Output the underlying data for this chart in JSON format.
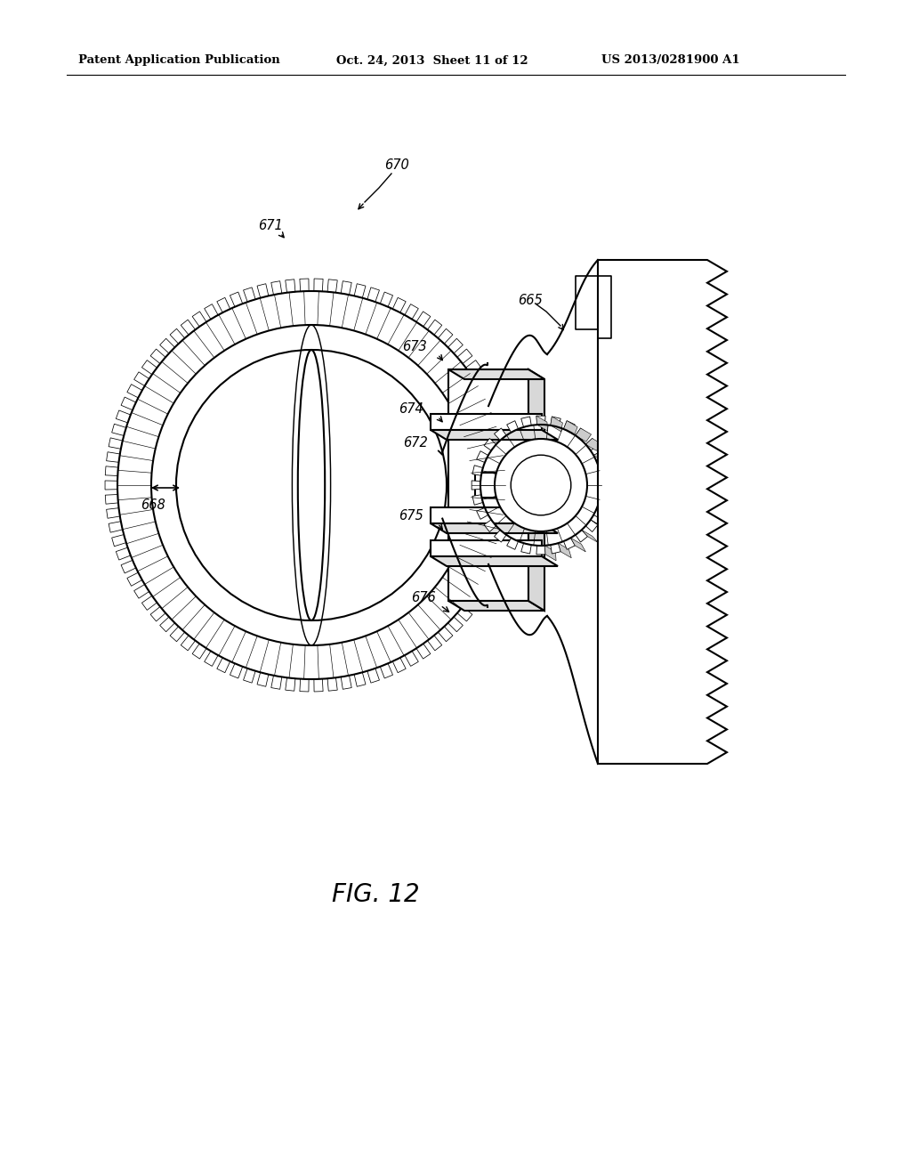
{
  "background_color": "#ffffff",
  "header_left": "Patent Application Publication",
  "header_center": "Oct. 24, 2013  Sheet 11 of 12",
  "header_right": "US 2013/0281900 A1",
  "figure_label": "FIG. 12",
  "line_color": "#000000",
  "line_width": 1.5
}
